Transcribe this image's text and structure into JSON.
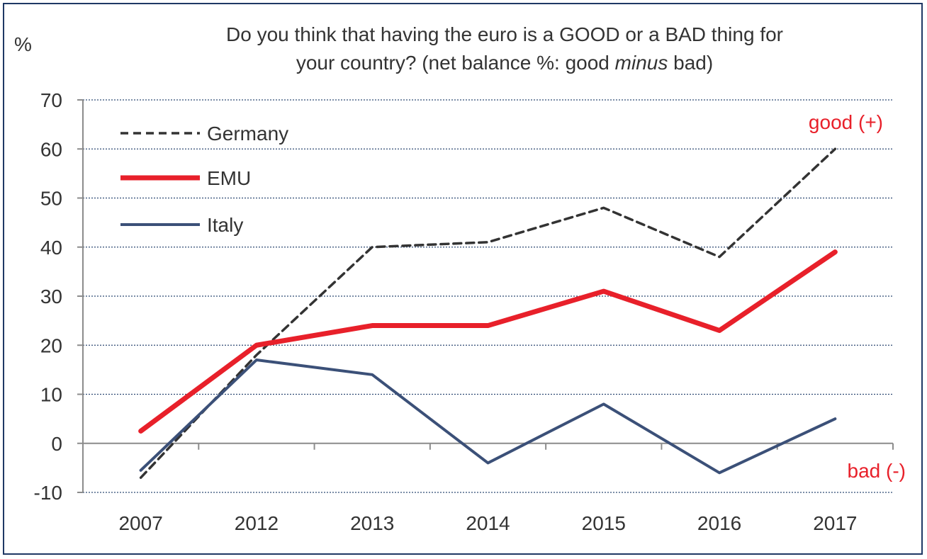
{
  "chart_data": {
    "type": "line",
    "title_line1": "Do you think that having  the euro is a GOOD or a BAD thing for",
    "title_line2_a": "your country?  (net balance %: good ",
    "title_line2_em": "minus",
    "title_line2_b": " bad)",
    "ylabel": "%",
    "categories": [
      "2007",
      "2012",
      "2013",
      "2014",
      "2015",
      "2016",
      "2017"
    ],
    "ylim": [
      -10,
      70
    ],
    "yticks": [
      -10,
      0,
      10,
      20,
      30,
      40,
      50,
      60,
      70
    ],
    "grid": true,
    "legend_position": "top-left",
    "series": [
      {
        "name": "Germany",
        "color": "#333333",
        "style": "dashed",
        "values": [
          -7,
          18,
          40,
          41,
          48,
          38,
          60
        ]
      },
      {
        "name": "EMU",
        "color": "#e8202a",
        "style": "solid-thick",
        "values": [
          2.5,
          20,
          24,
          24,
          31,
          23,
          39
        ]
      },
      {
        "name": "Italy",
        "color": "#3b5078",
        "style": "solid",
        "values": [
          -5.5,
          17,
          14,
          -4,
          8,
          -6,
          5
        ]
      }
    ],
    "annotations": {
      "good": "good (+)",
      "bad": "bad (-)",
      "color": "#e8202a"
    }
  }
}
